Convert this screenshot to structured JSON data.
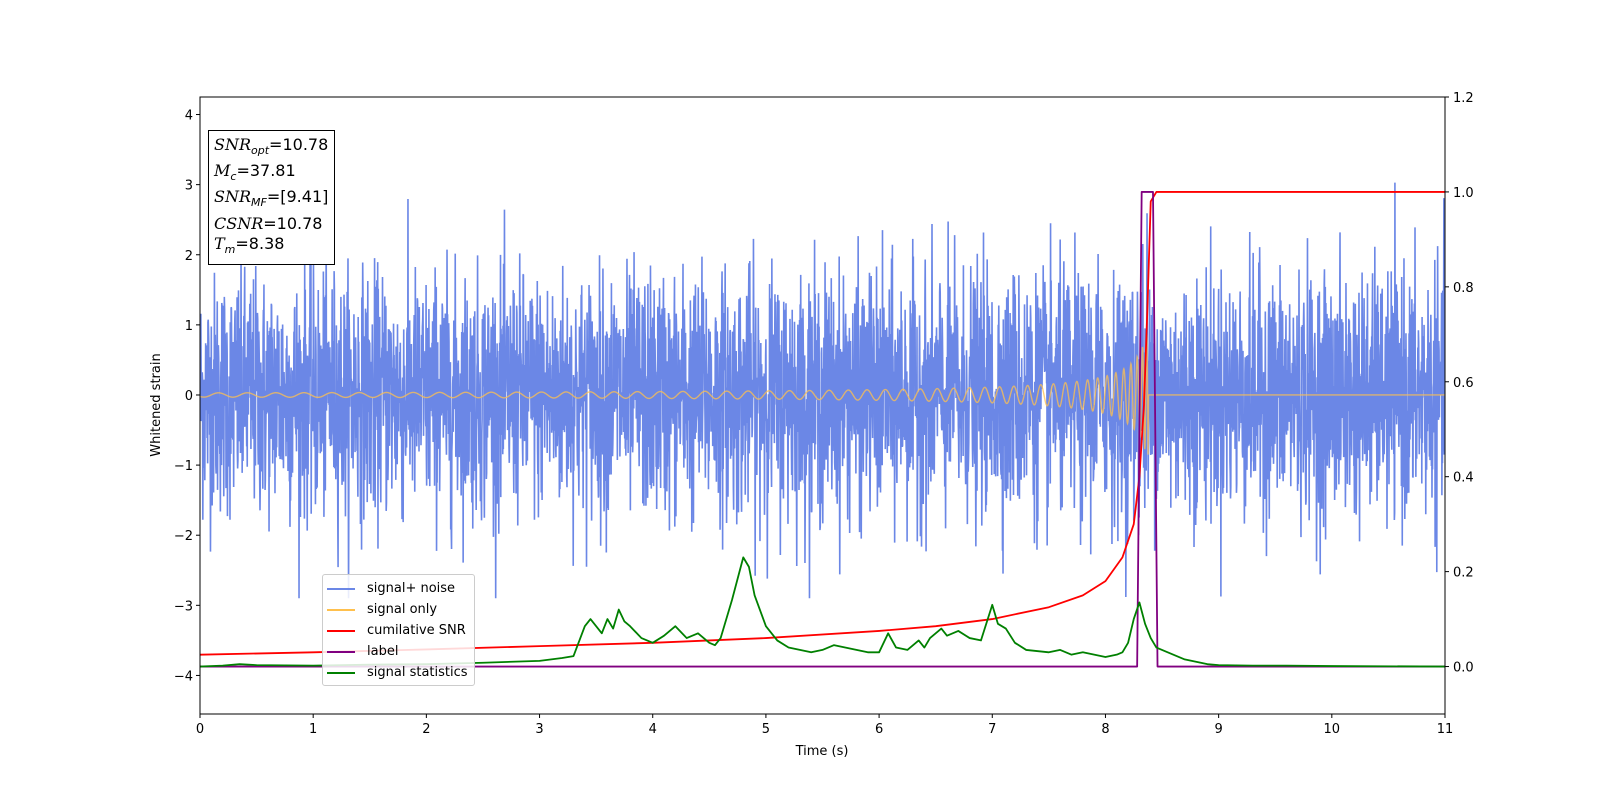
{
  "chart_data": {
    "type": "line",
    "xlabel": "Time (s)",
    "ylabel": "Whitened strain",
    "xlim": [
      0,
      11
    ],
    "ylim_left": [
      -4.55,
      4.25
    ],
    "ylim_right": [
      -0.1,
      1.2
    ],
    "x_ticks": [
      "0",
      "1",
      "2",
      "3",
      "4",
      "5",
      "6",
      "7",
      "8",
      "9",
      "10",
      "11"
    ],
    "y_left_ticks": [
      "4",
      "3",
      "2",
      "1",
      "0",
      "−1",
      "−2",
      "−3",
      "−4"
    ],
    "y_right_ticks": [
      "1.2",
      "1.0",
      "0.8",
      "0.6",
      "0.4",
      "0.2",
      "0.0"
    ],
    "y_left_tick_values": [
      4,
      3,
      2,
      1,
      0,
      -1,
      -2,
      -3,
      -4
    ],
    "y_right_tick_values": [
      1.2,
      1.0,
      0.8,
      0.6,
      0.4,
      0.2,
      0.0
    ],
    "annotation": {
      "snr_opt": {
        "sym": "SNR",
        "sub": "opt",
        "val": "=10.78"
      },
      "mc": {
        "sym": "M",
        "sub": "c",
        "val": "=37.81"
      },
      "snr_mf": {
        "sym": "SNR",
        "sub": "MF",
        "val": "=[9.41]"
      },
      "csnr": {
        "sym": "CSNR",
        "val": "=10.78"
      },
      "tm": {
        "sym": "T",
        "sub": "m",
        "val": "=8.38"
      }
    },
    "series": [
      {
        "name": "signal+ noise",
        "axis": "left",
        "color": "#6b87e6",
        "description_noise_std": 0.85,
        "description_range": [
          -2.9,
          3.25
        ]
      },
      {
        "name": "signal only",
        "axis": "left",
        "color": "#ffc04d",
        "chirp_merger_time": 8.38,
        "chirp_peak_amplitude": 1.0
      },
      {
        "name": "cumilative SNR",
        "axis": "right",
        "color": "#ff0000",
        "x": [
          0,
          1,
          2,
          3,
          4,
          5,
          6,
          6.5,
          7,
          7.5,
          7.8,
          8.0,
          8.15,
          8.25,
          8.3,
          8.34,
          8.37,
          8.4,
          8.45,
          11
        ],
        "y": [
          0.025,
          0.03,
          0.036,
          0.043,
          0.05,
          0.06,
          0.075,
          0.085,
          0.1,
          0.125,
          0.15,
          0.18,
          0.23,
          0.3,
          0.4,
          0.55,
          0.75,
          0.98,
          1.0,
          1.0
        ]
      },
      {
        "name": "label",
        "axis": "right",
        "color": "#800080",
        "x": [
          0,
          8.28,
          8.32,
          8.42,
          8.46,
          11
        ],
        "y": [
          0,
          0,
          1,
          1,
          0,
          0
        ]
      },
      {
        "name": "signal statistics",
        "axis": "right",
        "color": "#008000",
        "x": [
          0,
          0.2,
          0.35,
          0.5,
          1,
          1.5,
          2,
          2.5,
          3,
          3.2,
          3.3,
          3.4,
          3.45,
          3.55,
          3.6,
          3.65,
          3.7,
          3.75,
          3.8,
          3.9,
          4.0,
          4.1,
          4.2,
          4.3,
          4.35,
          4.4,
          4.5,
          4.55,
          4.6,
          4.7,
          4.8,
          4.85,
          4.9,
          5.0,
          5.1,
          5.2,
          5.3,
          5.4,
          5.5,
          5.6,
          5.7,
          5.8,
          5.9,
          6.0,
          6.08,
          6.15,
          6.25,
          6.35,
          6.4,
          6.45,
          6.55,
          6.6,
          6.7,
          6.8,
          6.9,
          7.0,
          7.05,
          7.12,
          7.2,
          7.3,
          7.5,
          7.6,
          7.7,
          7.8,
          7.9,
          8.0,
          8.1,
          8.15,
          8.2,
          8.25,
          8.3,
          8.35,
          8.4,
          8.45,
          8.55,
          8.7,
          8.9,
          9.0,
          9.3,
          9.6,
          10,
          11
        ],
        "y": [
          0.0,
          0.002,
          0.005,
          0.003,
          0.002,
          0.004,
          0.005,
          0.008,
          0.012,
          0.018,
          0.022,
          0.085,
          0.1,
          0.07,
          0.1,
          0.08,
          0.12,
          0.095,
          0.085,
          0.06,
          0.05,
          0.065,
          0.085,
          0.06,
          0.065,
          0.07,
          0.05,
          0.045,
          0.06,
          0.14,
          0.23,
          0.21,
          0.15,
          0.085,
          0.055,
          0.04,
          0.035,
          0.03,
          0.035,
          0.045,
          0.04,
          0.035,
          0.03,
          0.03,
          0.07,
          0.04,
          0.035,
          0.055,
          0.04,
          0.06,
          0.08,
          0.065,
          0.075,
          0.06,
          0.055,
          0.13,
          0.09,
          0.08,
          0.05,
          0.035,
          0.03,
          0.035,
          0.025,
          0.03,
          0.025,
          0.02,
          0.025,
          0.03,
          0.05,
          0.1,
          0.135,
          0.09,
          0.06,
          0.04,
          0.03,
          0.015,
          0.005,
          0.003,
          0.002,
          0.002,
          0.001,
          0.0
        ]
      }
    ],
    "legend": {
      "placement": "lower-left",
      "entries": [
        "signal+ noise",
        "signal only",
        "cumilative SNR",
        "label",
        "signal statistics"
      ]
    }
  }
}
